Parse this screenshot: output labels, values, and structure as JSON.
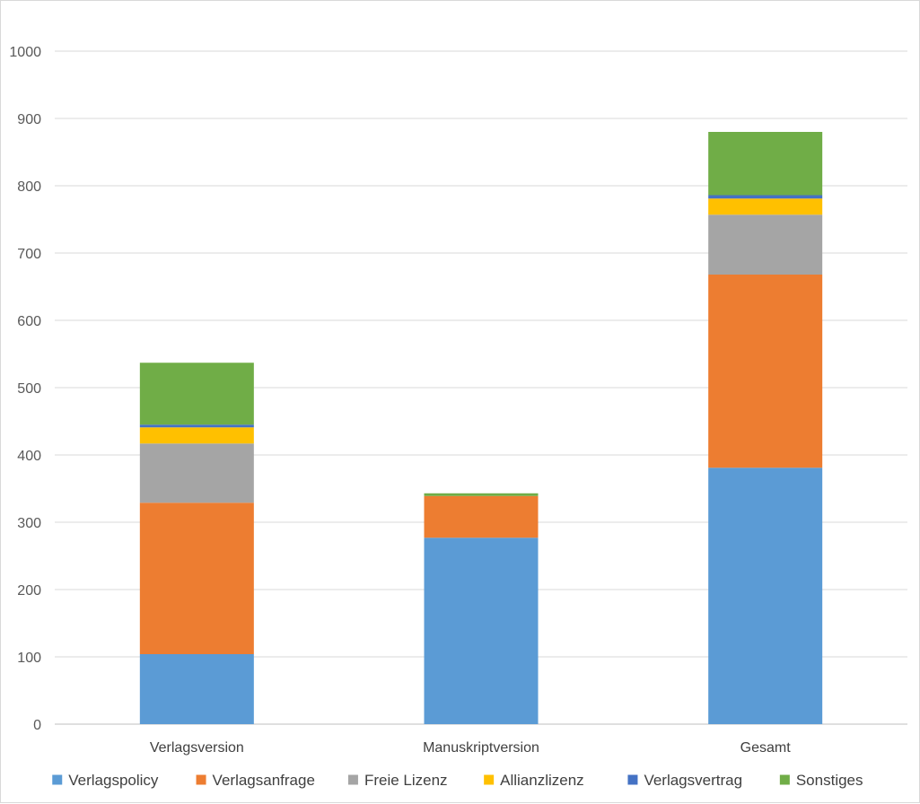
{
  "chart_data": {
    "type": "bar",
    "stacked": true,
    "title": "",
    "xlabel": "",
    "ylabel": "",
    "ylim": [
      0,
      1000
    ],
    "yticks": [
      0,
      100,
      200,
      300,
      400,
      500,
      600,
      700,
      800,
      900,
      1000
    ],
    "grid": true,
    "legend_position": "bottom",
    "categories": [
      "Verlagsversion",
      "Manuskriptversion",
      "Gesamt"
    ],
    "series": [
      {
        "name": "Verlagspolicy",
        "color": "#5b9bd5",
        "values": [
          104,
          277,
          381
        ]
      },
      {
        "name": "Verlagsanfrage",
        "color": "#ed7d31",
        "values": [
          225,
          62,
          287
        ]
      },
      {
        "name": "Freie Lizenz",
        "color": "#a5a5a5",
        "values": [
          88,
          0,
          89
        ]
      },
      {
        "name": "Allianzlizenz",
        "color": "#ffc000",
        "values": [
          24,
          0,
          24
        ]
      },
      {
        "name": "Verlagsvertrag",
        "color": "#4472c4",
        "values": [
          4,
          0,
          5
        ]
      },
      {
        "name": "Sonstiges",
        "color": "#70ad47",
        "values": [
          92,
          4,
          94
        ]
      }
    ]
  }
}
